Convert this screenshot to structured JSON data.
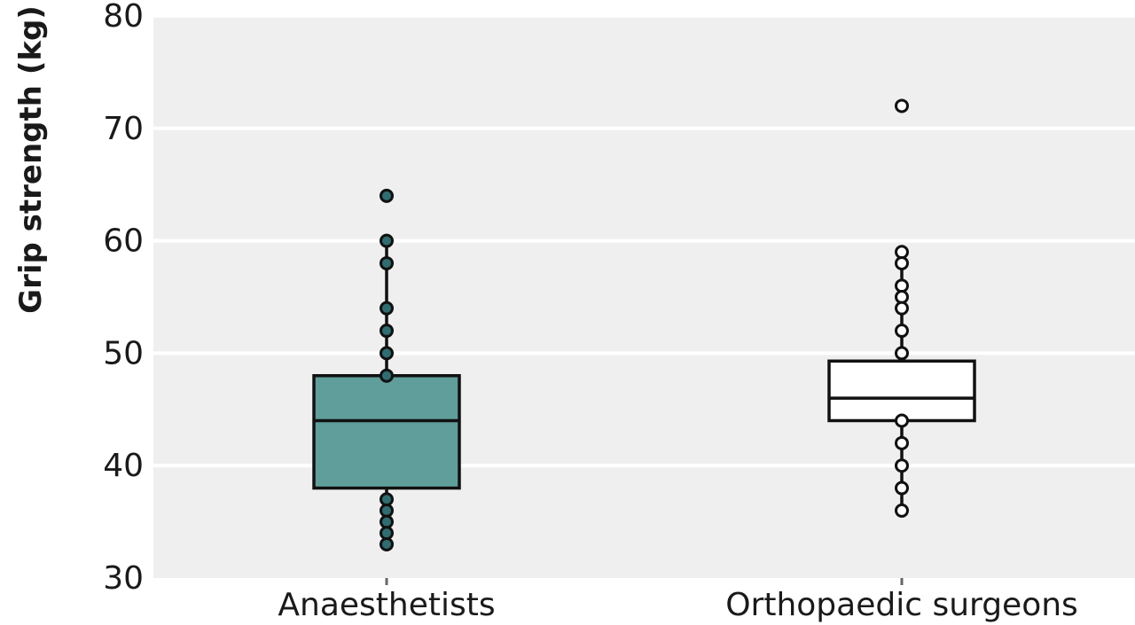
{
  "chart_data": {
    "type": "box",
    "ylabel": "Grip strength (kg)",
    "xlabel": "",
    "ylim": [
      30,
      80
    ],
    "yticks": [
      30,
      40,
      50,
      60,
      70,
      80
    ],
    "grid": "horizontal",
    "background": "#efefef",
    "categories": [
      "Anaesthetists",
      "Orthopaedic surgeons"
    ],
    "groups": [
      {
        "name": "Anaesthetists",
        "color": "#5f9e9b",
        "q1": 38,
        "median": 44,
        "q3": 48,
        "whisker_low": 33,
        "whisker_high": 60,
        "points": [
          64,
          60,
          58,
          54,
          52,
          50,
          48,
          37,
          36,
          35,
          34,
          33
        ],
        "point_style": "filled",
        "point_color": "#2e6e72"
      },
      {
        "name": "Orthopaedic surgeons",
        "color": "#ffffff",
        "q1": 44,
        "median": 46,
        "q3": 49.3,
        "whisker_low": 36,
        "whisker_high": 59,
        "points": [
          72,
          59,
          58,
          56,
          55,
          54,
          52,
          50,
          44,
          42,
          40,
          38,
          36
        ],
        "point_style": "open",
        "point_color": "#ffffff"
      }
    ]
  }
}
